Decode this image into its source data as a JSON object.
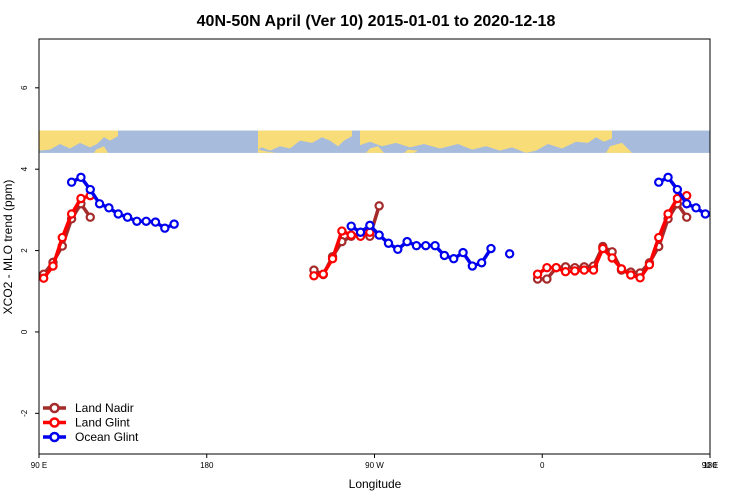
{
  "chart_data": {
    "type": "line",
    "title": "40N-50N April (Ver 10)   2015-01-01 to 2020-12-18",
    "xlabel": "Longitude",
    "ylabel": "XCO2 - MLO trend (ppm)",
    "xlim": [
      90,
      450
    ],
    "ylim": [
      -3,
      7.2
    ],
    "x_ticks": [
      {
        "value": 90,
        "label": "90 E"
      },
      {
        "value": 180,
        "label": "180"
      },
      {
        "value": 270,
        "label": "90 W"
      },
      {
        "value": 360,
        "label": "0"
      },
      {
        "value": 450,
        "label": "90 E"
      },
      {
        "value": 540,
        "label": "180"
      }
    ],
    "y_ticks": [
      {
        "value": -2,
        "label": "-2"
      },
      {
        "value": 0,
        "label": "0"
      },
      {
        "value": 2,
        "label": "2"
      },
      {
        "value": 4,
        "label": "4"
      },
      {
        "value": 6,
        "label": "6"
      }
    ],
    "legend_position": "bottom-left",
    "map_band": {
      "y_top": 4.95,
      "y_bottom": 4.4,
      "land_color": "#F8DC78",
      "ocean_color": "#A7BCDC"
    },
    "series": [
      {
        "name": "Land Nadir",
        "color": "#A52A2A",
        "segments": [
          [
            [
              92.5,
              1.42
            ],
            [
              97.5,
              1.71
            ],
            [
              102.5,
              2.11
            ],
            [
              107.5,
              2.78
            ],
            [
              112.5,
              3.15
            ],
            [
              117.5,
              2.82
            ]
          ],
          [
            [
              237.5,
              1.52
            ],
            [
              242.5,
              1.41
            ],
            [
              247.5,
              1.85
            ],
            [
              252.5,
              2.22
            ],
            [
              257.5,
              2.35
            ],
            [
              262.5,
              2.42
            ],
            [
              267.5,
              2.35
            ],
            [
              272.5,
              3.1
            ]
          ],
          [
            [
              357.5,
              1.3
            ],
            [
              362.5,
              1.3
            ],
            [
              367.5,
              1.58
            ],
            [
              372.5,
              1.6
            ],
            [
              377.5,
              1.58
            ],
            [
              382.5,
              1.6
            ],
            [
              387.5,
              1.62
            ],
            [
              392.5,
              2.1
            ],
            [
              397.5,
              1.97
            ],
            [
              402.5,
              1.52
            ],
            [
              407.5,
              1.47
            ],
            [
              412.5,
              1.45
            ],
            [
              417.5,
              1.7
            ],
            [
              422.5,
              2.1
            ],
            [
              427.5,
              2.78
            ],
            [
              432.5,
              3.15
            ],
            [
              437.5,
              2.82
            ]
          ]
        ]
      },
      {
        "name": "Land Glint",
        "color": "#FF0000",
        "segments": [
          [
            [
              92.5,
              1.32
            ],
            [
              97.5,
              1.62
            ],
            [
              102.5,
              2.32
            ],
            [
              107.5,
              2.9
            ],
            [
              112.5,
              3.28
            ],
            [
              117.5,
              3.35
            ]
          ],
          [
            [
              237.5,
              1.38
            ],
            [
              242.5,
              1.42
            ],
            [
              247.5,
              1.8
            ],
            [
              252.5,
              2.48
            ],
            [
              257.5,
              2.38
            ],
            [
              262.5,
              2.35
            ],
            [
              267.5,
              2.45
            ]
          ],
          [
            [
              357.5,
              1.42
            ],
            [
              362.5,
              1.58
            ],
            [
              367.5,
              1.58
            ],
            [
              372.5,
              1.48
            ],
            [
              377.5,
              1.5
            ],
            [
              382.5,
              1.52
            ],
            [
              387.5,
              1.52
            ],
            [
              392.5,
              2.05
            ],
            [
              397.5,
              1.82
            ],
            [
              402.5,
              1.55
            ],
            [
              407.5,
              1.4
            ],
            [
              412.5,
              1.33
            ],
            [
              417.5,
              1.65
            ],
            [
              422.5,
              2.32
            ],
            [
              427.5,
              2.9
            ],
            [
              432.5,
              3.28
            ],
            [
              437.5,
              3.35
            ]
          ]
        ]
      },
      {
        "name": "Ocean Glint",
        "color": "#0000EE",
        "segments": [
          [
            [
              107.5,
              3.68
            ],
            [
              112.5,
              3.8
            ],
            [
              117.5,
              3.5
            ],
            [
              122.5,
              3.15
            ],
            [
              127.5,
              3.05
            ],
            [
              132.5,
              2.9
            ],
            [
              137.5,
              2.82
            ],
            [
              142.5,
              2.72
            ],
            [
              147.5,
              2.72
            ],
            [
              152.5,
              2.7
            ],
            [
              157.5,
              2.55
            ],
            [
              162.5,
              2.65
            ]
          ],
          [
            [
              257.5,
              2.6
            ],
            [
              262.5,
              2.45
            ],
            [
              267.5,
              2.62
            ],
            [
              272.5,
              2.38
            ],
            [
              277.5,
              2.18
            ],
            [
              282.5,
              2.03
            ],
            [
              287.5,
              2.22
            ],
            [
              292.5,
              2.12
            ],
            [
              297.5,
              2.12
            ],
            [
              302.5,
              2.12
            ],
            [
              307.5,
              1.88
            ],
            [
              312.5,
              1.8
            ],
            [
              317.5,
              1.95
            ],
            [
              322.5,
              1.62
            ],
            [
              327.5,
              1.7
            ],
            [
              332.5,
              2.05
            ]
          ],
          [
            [
              342.5,
              1.92
            ]
          ],
          [
            [
              422.5,
              3.68
            ],
            [
              427.5,
              3.8
            ],
            [
              432.5,
              3.5
            ],
            [
              437.5,
              3.15
            ],
            [
              442.5,
              3.05
            ],
            [
              447.5,
              2.9
            ]
          ]
        ]
      }
    ]
  }
}
